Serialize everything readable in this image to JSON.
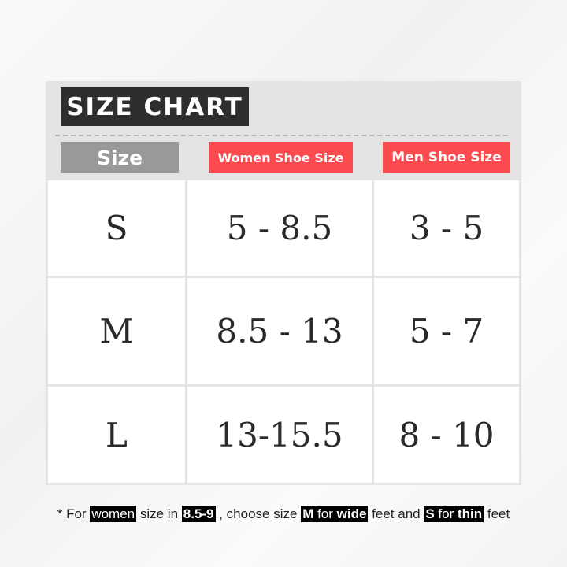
{
  "title": "SIZE CHART",
  "headers": {
    "size": "Size",
    "women": "Women Shoe Size",
    "men": "Men Shoe Size"
  },
  "rows": [
    {
      "size": "S",
      "women": "5 - 8.5",
      "men": "3 - 5"
    },
    {
      "size": "M",
      "women": "8.5 - 13",
      "men": "5 - 7"
    },
    {
      "size": "L",
      "women": "13-15.5",
      "men": "8 - 10"
    }
  ],
  "note": {
    "p1": "* For ",
    "w1": "women",
    "p2": " size in ",
    "w2": "8.5-9",
    "p3": " , choose size ",
    "w3a": "M",
    "w3b": " for ",
    "w3c": "wide",
    "p4": " feet and ",
    "w4a": "S",
    "w4b": " for ",
    "w4c": "thin",
    "p5": " feet"
  },
  "colors": {
    "accent": "#fb4b4e",
    "title_bg": "#2e2e2e",
    "size_header_bg": "#999999",
    "panel": "#e4e4e4"
  }
}
